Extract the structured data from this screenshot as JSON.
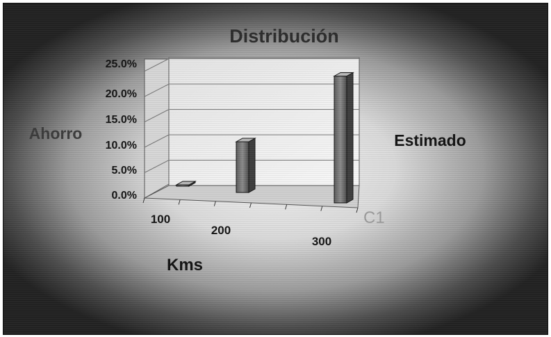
{
  "chart_data": {
    "type": "bar",
    "title": "Distribución",
    "categories": [
      "100",
      "200",
      "300"
    ],
    "series": [
      {
        "name": "C1",
        "values": [
          0.0,
          10.0,
          25.0
        ]
      }
    ],
    "ylim": [
      0,
      25
    ],
    "yticks": [
      "0.0%",
      "5.0%",
      "10.0%",
      "15.0%",
      "20.0%",
      "25.0%"
    ],
    "xlabel": "Kms",
    "ylabel": "Ahorro",
    "side_label": "Estimado",
    "grid": true
  }
}
